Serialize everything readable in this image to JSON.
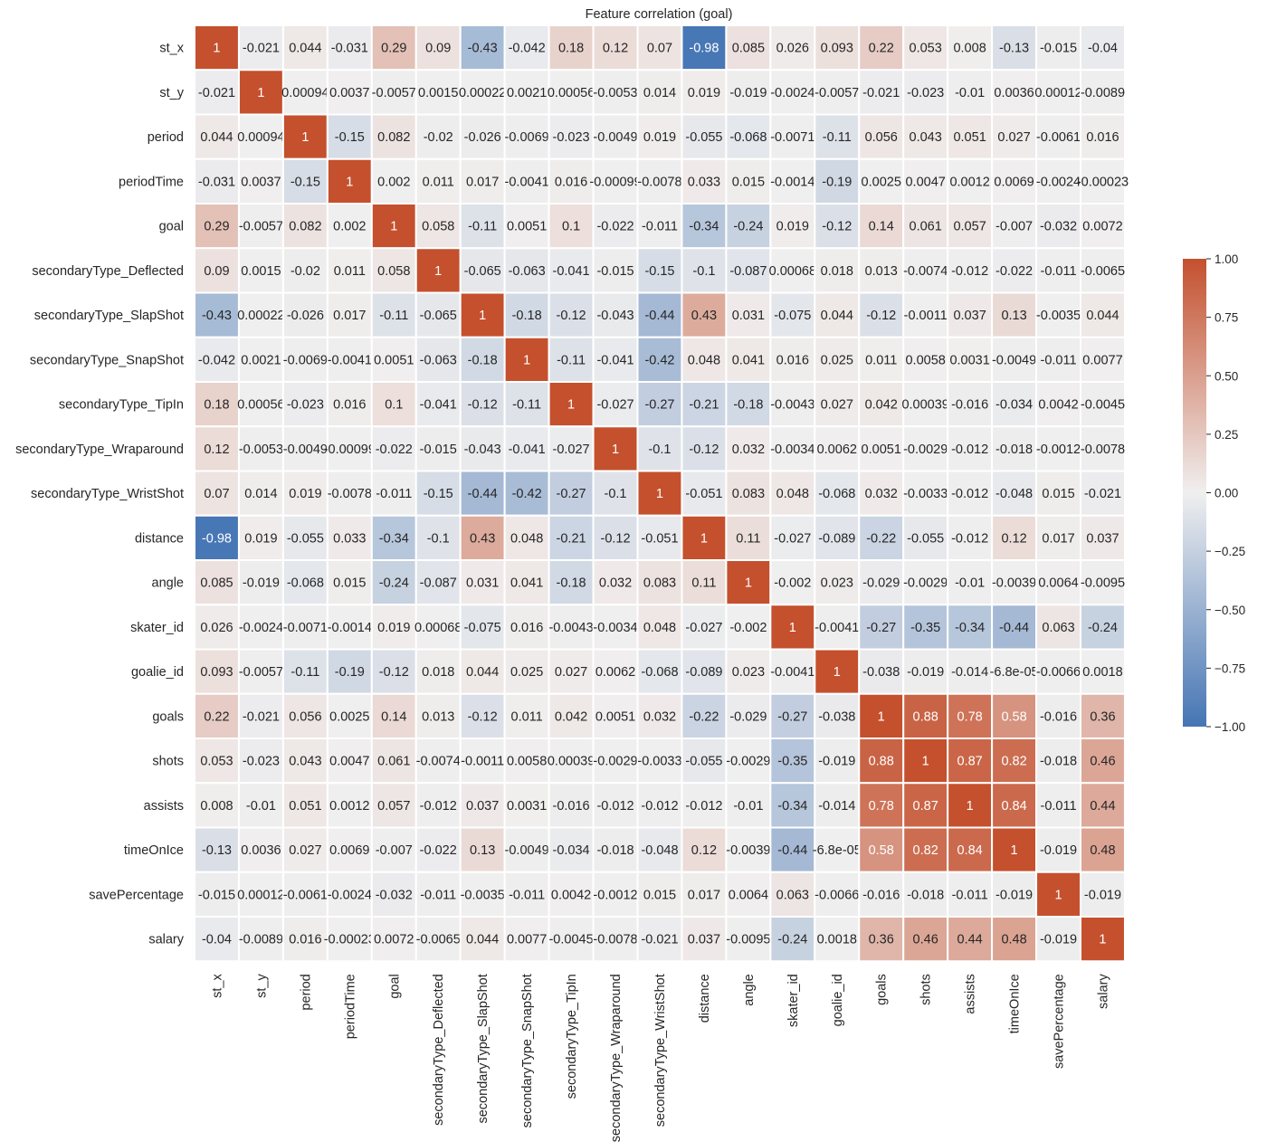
{
  "chart_data": {
    "type": "heatmap",
    "title": "Feature correlation (goal)",
    "variables": [
      "st_x",
      "st_y",
      "period",
      "periodTime",
      "goal",
      "secondaryType_Deflected",
      "secondaryType_SlapShot",
      "secondaryType_SnapShot",
      "secondaryType_TipIn",
      "secondaryType_Wraparound",
      "secondaryType_WristShot",
      "distance",
      "angle",
      "skater_id",
      "goalie_id",
      "goals",
      "shots",
      "assists",
      "timeOnIce",
      "savePercentage",
      "salary"
    ],
    "values": [
      [
        1,
        -0.021,
        0.044,
        -0.031,
        0.29,
        0.09,
        -0.43,
        -0.042,
        0.18,
        0.12,
        0.07,
        -0.98,
        0.085,
        0.026,
        0.093,
        0.22,
        0.053,
        0.008,
        -0.13,
        -0.015,
        -0.04
      ],
      [
        -0.021,
        1,
        0.00094,
        0.0037,
        -0.0057,
        0.0015,
        0.00022,
        0.0021,
        0.00056,
        -0.0053,
        0.014,
        0.019,
        -0.019,
        -0.0024,
        -0.0057,
        -0.021,
        -0.023,
        -0.01,
        0.0036,
        0.00012,
        -0.0089
      ],
      [
        0.044,
        0.00094,
        1,
        -0.15,
        0.082,
        -0.02,
        -0.026,
        -0.0069,
        -0.023,
        -0.0049,
        0.019,
        -0.055,
        -0.068,
        -0.0071,
        -0.11,
        0.056,
        0.043,
        0.051,
        0.027,
        -0.0061,
        0.016
      ],
      [
        -0.031,
        0.0037,
        -0.15,
        1,
        0.002,
        0.011,
        0.017,
        -0.0041,
        0.016,
        -0.00099,
        -0.0078,
        0.033,
        0.015,
        -0.0014,
        -0.19,
        0.0025,
        0.0047,
        0.0012,
        0.0069,
        -0.0024,
        -0.00023
      ],
      [
        0.29,
        -0.0057,
        0.082,
        0.002,
        1,
        0.058,
        -0.11,
        0.0051,
        0.1,
        -0.022,
        -0.011,
        -0.34,
        -0.24,
        0.019,
        -0.12,
        0.14,
        0.061,
        0.057,
        -0.007,
        -0.032,
        0.0072
      ],
      [
        0.09,
        0.0015,
        -0.02,
        0.011,
        0.058,
        1,
        -0.065,
        -0.063,
        -0.041,
        -0.015,
        -0.15,
        -0.1,
        -0.087,
        0.00068,
        0.018,
        0.013,
        -0.0074,
        -0.012,
        -0.022,
        -0.011,
        -0.0065
      ],
      [
        -0.43,
        0.00022,
        -0.026,
        0.017,
        -0.11,
        -0.065,
        1,
        -0.18,
        -0.12,
        -0.043,
        -0.44,
        0.43,
        0.031,
        -0.075,
        0.044,
        -0.12,
        -0.0011,
        0.037,
        0.13,
        -0.0035,
        0.044
      ],
      [
        -0.042,
        0.0021,
        -0.0069,
        -0.0041,
        0.0051,
        -0.063,
        -0.18,
        1,
        -0.11,
        -0.041,
        -0.42,
        0.048,
        0.041,
        0.016,
        0.025,
        0.011,
        0.0058,
        0.0031,
        -0.0049,
        -0.011,
        0.0077
      ],
      [
        0.18,
        0.00056,
        -0.023,
        0.016,
        0.1,
        -0.041,
        -0.12,
        -0.11,
        1,
        -0.027,
        -0.27,
        -0.21,
        -0.18,
        -0.0043,
        0.027,
        0.042,
        0.00039,
        -0.016,
        -0.034,
        0.0042,
        -0.0045
      ],
      [
        0.12,
        -0.0053,
        -0.0049,
        -0.00099,
        -0.022,
        -0.015,
        -0.043,
        -0.041,
        -0.027,
        1,
        -0.1,
        -0.12,
        0.032,
        -0.0034,
        0.0062,
        0.0051,
        -0.0029,
        -0.012,
        -0.018,
        -0.0012,
        -0.0078
      ],
      [
        0.07,
        0.014,
        0.019,
        -0.0078,
        -0.011,
        -0.15,
        -0.44,
        -0.42,
        -0.27,
        -0.1,
        1,
        -0.051,
        0.083,
        0.048,
        -0.068,
        0.032,
        -0.0033,
        -0.012,
        -0.048,
        0.015,
        -0.021
      ],
      [
        -0.98,
        0.019,
        -0.055,
        0.033,
        -0.34,
        -0.1,
        0.43,
        0.048,
        -0.21,
        -0.12,
        -0.051,
        1,
        0.11,
        -0.027,
        -0.089,
        -0.22,
        -0.055,
        -0.012,
        0.12,
        0.017,
        0.037
      ],
      [
        0.085,
        -0.019,
        -0.068,
        0.015,
        -0.24,
        -0.087,
        0.031,
        0.041,
        -0.18,
        0.032,
        0.083,
        0.11,
        1,
        -0.002,
        0.023,
        -0.029,
        -0.0029,
        -0.01,
        -0.0039,
        0.0064,
        -0.0095
      ],
      [
        0.026,
        -0.0024,
        -0.0071,
        -0.0014,
        0.019,
        0.00068,
        -0.075,
        0.016,
        -0.0043,
        -0.0034,
        0.048,
        -0.027,
        -0.002,
        1,
        -0.0041,
        -0.27,
        -0.35,
        -0.34,
        -0.44,
        0.063,
        -0.24
      ],
      [
        0.093,
        -0.0057,
        -0.11,
        -0.19,
        -0.12,
        0.018,
        0.044,
        0.025,
        0.027,
        0.0062,
        -0.068,
        -0.089,
        0.023,
        -0.0041,
        1,
        -0.038,
        -0.019,
        -0.014,
        -6.8e-05,
        -0.0066,
        0.0018
      ],
      [
        0.22,
        -0.021,
        0.056,
        0.0025,
        0.14,
        0.013,
        -0.12,
        0.011,
        0.042,
        0.0051,
        0.032,
        -0.22,
        -0.029,
        -0.27,
        -0.038,
        1,
        0.88,
        0.78,
        0.58,
        -0.016,
        0.36
      ],
      [
        0.053,
        -0.023,
        0.043,
        0.0047,
        0.061,
        -0.0074,
        -0.0011,
        0.0058,
        0.00039,
        -0.0029,
        -0.0033,
        -0.055,
        -0.0029,
        -0.35,
        -0.019,
        0.88,
        1,
        0.87,
        0.82,
        -0.018,
        0.46
      ],
      [
        0.008,
        -0.01,
        0.051,
        0.0012,
        0.057,
        -0.012,
        0.037,
        0.0031,
        -0.016,
        -0.012,
        -0.012,
        -0.012,
        -0.01,
        -0.34,
        -0.014,
        0.78,
        0.87,
        1,
        0.84,
        -0.011,
        0.44
      ],
      [
        -0.13,
        0.0036,
        0.027,
        0.0069,
        -0.007,
        -0.022,
        0.13,
        -0.0049,
        -0.034,
        -0.018,
        -0.048,
        0.12,
        -0.0039,
        -0.44,
        -6.8e-05,
        0.58,
        0.82,
        0.84,
        1,
        -0.019,
        0.48
      ],
      [
        -0.015,
        0.00012,
        -0.0061,
        -0.0024,
        -0.032,
        -0.011,
        -0.0035,
        -0.011,
        0.0042,
        -0.0012,
        0.015,
        0.017,
        0.0064,
        0.063,
        -0.0066,
        -0.016,
        -0.018,
        -0.011,
        -0.019,
        1,
        -0.019
      ],
      [
        -0.04,
        -0.0089,
        0.016,
        -0.00023,
        0.0072,
        -0.0065,
        0.044,
        0.0077,
        -0.0045,
        -0.0078,
        -0.021,
        0.037,
        -0.0095,
        -0.24,
        0.0018,
        0.36,
        0.46,
        0.44,
        0.48,
        -0.019,
        1
      ]
    ],
    "labels": [
      [
        "1",
        "-0.021",
        "0.044",
        "-0.031",
        "0.29",
        "0.09",
        "-0.43",
        "-0.042",
        "0.18",
        "0.12",
        "0.07",
        "-0.98",
        "0.085",
        "0.026",
        "0.093",
        "0.22",
        "0.053",
        "0.008",
        "-0.13",
        "-0.015",
        "-0.04"
      ],
      [
        "-0.021",
        "1",
        "0.00094",
        "0.0037",
        "-0.0057",
        "0.0015",
        "0.00022",
        "0.0021",
        "0.00056",
        "-0.0053",
        "0.014",
        "0.019",
        "-0.019",
        "-0.0024",
        "-0.0057",
        "-0.021",
        "-0.023",
        "-0.01",
        "0.0036",
        "0.00012",
        "-0.0089"
      ],
      [
        "0.044",
        "0.00094",
        "1",
        "-0.15",
        "0.082",
        "-0.02",
        "-0.026",
        "-0.0069",
        "-0.023",
        "-0.0049",
        "0.019",
        "-0.055",
        "-0.068",
        "-0.0071",
        "-0.11",
        "0.056",
        "0.043",
        "0.051",
        "0.027",
        "-0.0061",
        "0.016"
      ],
      [
        "-0.031",
        "0.0037",
        "-0.15",
        "1",
        "0.002",
        "0.011",
        "0.017",
        "-0.0041",
        "0.016",
        "-0.00099",
        "-0.0078",
        "0.033",
        "0.015",
        "-0.0014",
        "-0.19",
        "0.0025",
        "0.0047",
        "0.0012",
        "0.0069",
        "-0.0024",
        "-0.00023"
      ],
      [
        "0.29",
        "-0.0057",
        "0.082",
        "0.002",
        "1",
        "0.058",
        "-0.11",
        "0.0051",
        "0.1",
        "-0.022",
        "-0.011",
        "-0.34",
        "-0.24",
        "0.019",
        "-0.12",
        "0.14",
        "0.061",
        "0.057",
        "-0.007",
        "-0.032",
        "0.0072"
      ],
      [
        "0.09",
        "0.0015",
        "-0.02",
        "0.011",
        "0.058",
        "1",
        "-0.065",
        "-0.063",
        "-0.041",
        "-0.015",
        "-0.15",
        "-0.1",
        "-0.087",
        "0.00068",
        "0.018",
        "0.013",
        "-0.0074",
        "-0.012",
        "-0.022",
        "-0.011",
        "-0.0065"
      ],
      [
        "-0.43",
        "0.00022",
        "-0.026",
        "0.017",
        "-0.11",
        "-0.065",
        "1",
        "-0.18",
        "-0.12",
        "-0.043",
        "-0.44",
        "0.43",
        "0.031",
        "-0.075",
        "0.044",
        "-0.12",
        "-0.0011",
        "0.037",
        "0.13",
        "-0.0035",
        "0.044"
      ],
      [
        "-0.042",
        "0.0021",
        "-0.0069",
        "-0.0041",
        "0.0051",
        "-0.063",
        "-0.18",
        "1",
        "-0.11",
        "-0.041",
        "-0.42",
        "0.048",
        "0.041",
        "0.016",
        "0.025",
        "0.011",
        "0.0058",
        "0.0031",
        "-0.0049",
        "-0.011",
        "0.0077"
      ],
      [
        "0.18",
        "0.00056",
        "-0.023",
        "0.016",
        "0.1",
        "-0.041",
        "-0.12",
        "-0.11",
        "1",
        "-0.027",
        "-0.27",
        "-0.21",
        "-0.18",
        "-0.0043",
        "0.027",
        "0.042",
        "0.00039",
        "-0.016",
        "-0.034",
        "0.0042",
        "-0.0045"
      ],
      [
        "0.12",
        "-0.0053",
        "-0.0049",
        "-0.00099",
        "-0.022",
        "-0.015",
        "-0.043",
        "-0.041",
        "-0.027",
        "1",
        "-0.1",
        "-0.12",
        "0.032",
        "-0.0034",
        "0.0062",
        "0.0051",
        "-0.0029",
        "-0.012",
        "-0.018",
        "-0.0012",
        "-0.0078"
      ],
      [
        "0.07",
        "0.014",
        "0.019",
        "-0.0078",
        "-0.011",
        "-0.15",
        "-0.44",
        "-0.42",
        "-0.27",
        "-0.1",
        "1",
        "-0.051",
        "0.083",
        "0.048",
        "-0.068",
        "0.032",
        "-0.0033",
        "-0.012",
        "-0.048",
        "0.015",
        "-0.021"
      ],
      [
        "-0.98",
        "0.019",
        "-0.055",
        "0.033",
        "-0.34",
        "-0.1",
        "0.43",
        "0.048",
        "-0.21",
        "-0.12",
        "-0.051",
        "1",
        "0.11",
        "-0.027",
        "-0.089",
        "-0.22",
        "-0.055",
        "-0.012",
        "0.12",
        "0.017",
        "0.037"
      ],
      [
        "0.085",
        "-0.019",
        "-0.068",
        "0.015",
        "-0.24",
        "-0.087",
        "0.031",
        "0.041",
        "-0.18",
        "0.032",
        "0.083",
        "0.11",
        "1",
        "-0.002",
        "0.023",
        "-0.029",
        "-0.0029",
        "-0.01",
        "-0.0039",
        "0.0064",
        "-0.0095"
      ],
      [
        "0.026",
        "-0.0024",
        "-0.0071",
        "-0.0014",
        "0.019",
        "0.00068",
        "-0.075",
        "0.016",
        "-0.0043",
        "-0.0034",
        "0.048",
        "-0.027",
        "-0.002",
        "1",
        "-0.0041",
        "-0.27",
        "-0.35",
        "-0.34",
        "-0.44",
        "0.063",
        "-0.24"
      ],
      [
        "0.093",
        "-0.0057",
        "-0.11",
        "-0.19",
        "-0.12",
        "0.018",
        "0.044",
        "0.025",
        "0.027",
        "0.0062",
        "-0.068",
        "-0.089",
        "0.023",
        "-0.0041",
        "1",
        "-0.038",
        "-0.019",
        "-0.014",
        "-6.8e-05",
        "-0.0066",
        "0.0018"
      ],
      [
        "0.22",
        "-0.021",
        "0.056",
        "0.0025",
        "0.14",
        "0.013",
        "-0.12",
        "0.011",
        "0.042",
        "0.0051",
        "0.032",
        "-0.22",
        "-0.029",
        "-0.27",
        "-0.038",
        "1",
        "0.88",
        "0.78",
        "0.58",
        "-0.016",
        "0.36"
      ],
      [
        "0.053",
        "-0.023",
        "0.043",
        "0.0047",
        "0.061",
        "-0.0074",
        "-0.0011",
        "0.0058",
        "0.00039",
        "-0.0029",
        "-0.0033",
        "-0.055",
        "-0.0029",
        "-0.35",
        "-0.019",
        "0.88",
        "1",
        "0.87",
        "0.82",
        "-0.018",
        "0.46"
      ],
      [
        "0.008",
        "-0.01",
        "0.051",
        "0.0012",
        "0.057",
        "-0.012",
        "0.037",
        "0.0031",
        "-0.016",
        "-0.012",
        "-0.012",
        "-0.012",
        "-0.01",
        "-0.34",
        "-0.014",
        "0.78",
        "0.87",
        "1",
        "0.84",
        "-0.011",
        "0.44"
      ],
      [
        "-0.13",
        "0.0036",
        "0.027",
        "0.0069",
        "-0.007",
        "-0.022",
        "0.13",
        "-0.0049",
        "-0.034",
        "-0.018",
        "-0.048",
        "0.12",
        "-0.0039",
        "-0.44",
        "-6.8e-05",
        "0.58",
        "0.82",
        "0.84",
        "1",
        "-0.019",
        "0.48"
      ],
      [
        "-0.015",
        "0.00012",
        "-0.0061",
        "-0.0024",
        "-0.032",
        "-0.011",
        "-0.0035",
        "-0.011",
        "0.0042",
        "-0.0012",
        "0.015",
        "0.017",
        "0.0064",
        "0.063",
        "-0.0066",
        "-0.016",
        "-0.018",
        "-0.011",
        "-0.019",
        "1",
        "-0.019"
      ],
      [
        "-0.04",
        "-0.0089",
        "0.016",
        "-0.00023",
        "0.0072",
        "-0.0065",
        "0.044",
        "0.0077",
        "-0.0045",
        "-0.0078",
        "-0.021",
        "0.037",
        "-0.0095",
        "-0.24",
        "0.0018",
        "0.36",
        "0.46",
        "0.44",
        "0.48",
        "-0.019",
        "1"
      ]
    ],
    "colorbar": {
      "min": -1.0,
      "max": 1.0,
      "ticks": [
        1.0,
        0.75,
        0.5,
        0.25,
        0.0,
        -0.25,
        -0.5,
        -0.75,
        -1.0
      ],
      "tick_labels": [
        "1.00",
        "0.75",
        "0.50",
        "0.25",
        "0.00",
        "−0.25",
        "−0.50",
        "−0.75",
        "−1.00"
      ]
    },
    "colors": {
      "negative": "#4575b4",
      "neutral": "#f0efef",
      "positive": "#c4502e",
      "grid": "#ffffff",
      "text_dark": "#262626",
      "text_light": "#ffffff"
    }
  }
}
